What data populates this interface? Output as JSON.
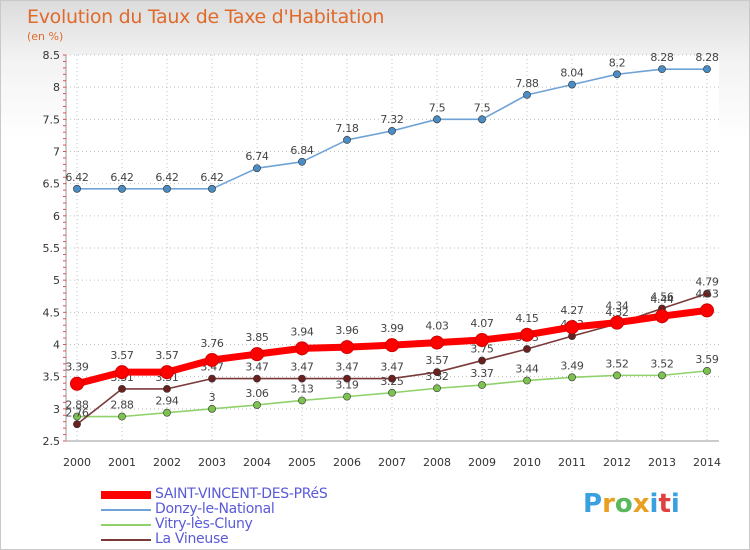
{
  "title": "Evolution du Taux de Taxe d'Habitation",
  "unit_label": "(en %)",
  "logo_text": "Proxiti",
  "colors": {
    "title": "#e06a2a",
    "legend_text": "#5a5ad8",
    "grid": "#c0c0c0"
  },
  "chart_data": {
    "type": "line",
    "title": "Evolution du Taux de Taxe d'Habitation",
    "ylabel": "(en %)",
    "x": [
      "2000",
      "2001",
      "2002",
      "2003",
      "2004",
      "2005",
      "2006",
      "2007",
      "2008",
      "2009",
      "2010",
      "2011",
      "2012",
      "2013",
      "2014"
    ],
    "ylim": [
      2.5,
      8.5
    ],
    "yticks": [
      "2.5",
      "3",
      "3.5",
      "4",
      "4.5",
      "5",
      "5.5",
      "6",
      "6.5",
      "7",
      "7.5",
      "8",
      "8.5"
    ],
    "grid": true,
    "legend_position": "bottom-left",
    "series": [
      {
        "name": "Donzy-le-National",
        "color": "#6fa3d6",
        "marker": "#4a8cc4",
        "values": [
          6.42,
          6.42,
          6.42,
          6.42,
          6.74,
          6.84,
          7.18,
          7.32,
          7.5,
          7.5,
          7.88,
          8.04,
          8.2,
          8.28,
          8.28
        ],
        "labels": [
          "6.42",
          "6.42",
          "6.42",
          "6.42",
          "6.74",
          "6.84",
          "7.18",
          "7.32",
          "7.5",
          "7.5",
          "7.88",
          "8.04",
          "8.2",
          "8.28",
          "8.28"
        ]
      },
      {
        "name": "Vitry-lès-Cluny",
        "color": "#8fd16a",
        "marker": "#7cc24f",
        "values": [
          2.88,
          2.88,
          2.94,
          3.0,
          3.06,
          3.13,
          3.19,
          3.25,
          3.32,
          3.37,
          3.44,
          3.49,
          3.52,
          3.52,
          3.59
        ],
        "labels": [
          "2.88",
          "2.88",
          "2.94",
          "3",
          "3.06",
          "3.13",
          "3.19",
          "3.25",
          "3.32",
          "3.37",
          "3.44",
          "3.49",
          "3.52",
          "3.52",
          "3.59"
        ]
      },
      {
        "name": "La Vineuse",
        "color": "#7a3a3a",
        "marker": "#6b2020",
        "values": [
          2.76,
          3.31,
          3.31,
          3.47,
          3.47,
          3.47,
          3.47,
          3.47,
          3.57,
          3.75,
          3.93,
          4.13,
          4.32,
          4.56,
          4.79
        ],
        "labels": [
          "2.76",
          "3.31",
          "3.31",
          "3.47",
          "3.47",
          "3.47",
          "3.47",
          "3.47",
          "3.57",
          "3.75",
          "3.93",
          "4.13",
          "4.32",
          "4.56",
          "4.79"
        ]
      },
      {
        "name": "SAINT-VINCENT-DES-PRéS",
        "color": "#ff0000",
        "marker": "#ff0000",
        "values": [
          3.39,
          3.57,
          3.57,
          3.76,
          3.85,
          3.94,
          3.96,
          3.99,
          4.03,
          4.07,
          4.15,
          4.27,
          4.34,
          4.44,
          4.53
        ],
        "labels": [
          "3.39",
          "3.57",
          "3.57",
          "3.76",
          "3.85",
          "3.94",
          "3.96",
          "3.99",
          "4.03",
          "4.07",
          "4.15",
          "4.27",
          "4.34",
          "4.44",
          "4.53"
        ]
      }
    ],
    "legend": [
      {
        "name": "SAINT-VINCENT-DES-PRéS",
        "color": "#ff0000",
        "width": 8
      },
      {
        "name": "Donzy-le-National",
        "color": "#6fa3d6",
        "width": 2
      },
      {
        "name": "Vitry-lès-Cluny",
        "color": "#8fd16a",
        "width": 2
      },
      {
        "name": "La Vineuse",
        "color": "#7a3a3a",
        "width": 2
      }
    ]
  }
}
